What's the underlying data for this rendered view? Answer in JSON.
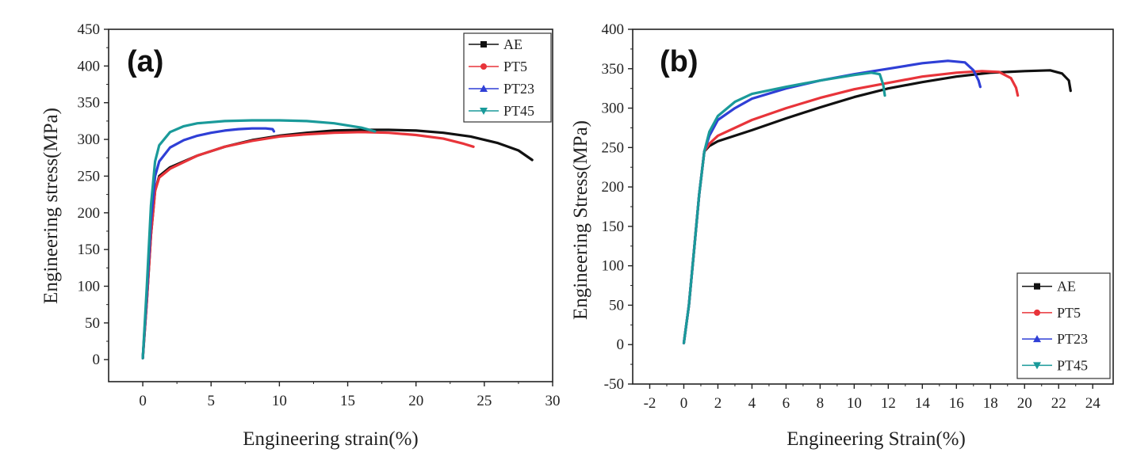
{
  "figure": {
    "description_free": true
  },
  "chart_data": [
    {
      "type": "line",
      "panel_label": "(a)",
      "xlabel": "Engineering strain(%)",
      "ylabel": "Engineering stress(MPa)",
      "xlim": [
        -2.5,
        30
      ],
      "ylim": [
        -30,
        450
      ],
      "xticks": [
        0,
        5,
        10,
        15,
        20,
        25,
        30
      ],
      "yticks": [
        0,
        50,
        100,
        150,
        200,
        250,
        300,
        350,
        400,
        450
      ],
      "legend_position": "top-right",
      "series": [
        {
          "name": "AE",
          "color": "#111111",
          "marker": "square",
          "points": [
            [
              0,
              2
            ],
            [
              0.3,
              80
            ],
            [
              0.6,
              170
            ],
            [
              0.9,
              230
            ],
            [
              1.2,
              250
            ],
            [
              2,
              262
            ],
            [
              4,
              278
            ],
            [
              6,
              290
            ],
            [
              8,
              299
            ],
            [
              10,
              305
            ],
            [
              12,
              309
            ],
            [
              14,
              312
            ],
            [
              16,
              313
            ],
            [
              18,
              313
            ],
            [
              20,
              312
            ],
            [
              22,
              309
            ],
            [
              24,
              304
            ],
            [
              26,
              295
            ],
            [
              27.5,
              285
            ],
            [
              28.5,
              272
            ]
          ]
        },
        {
          "name": "PT5",
          "color": "#e8343a",
          "marker": "circle",
          "points": [
            [
              0,
              2
            ],
            [
              0.3,
              80
            ],
            [
              0.6,
              170
            ],
            [
              0.9,
              230
            ],
            [
              1.2,
              248
            ],
            [
              2,
              260
            ],
            [
              4,
              278
            ],
            [
              6,
              290
            ],
            [
              8,
              298
            ],
            [
              10,
              304
            ],
            [
              12,
              307
            ],
            [
              14,
              309
            ],
            [
              16,
              310
            ],
            [
              18,
              309
            ],
            [
              20,
              306
            ],
            [
              22,
              301
            ],
            [
              23.5,
              294
            ],
            [
              24.2,
              290
            ]
          ]
        },
        {
          "name": "PT23",
          "color": "#2f3fd6",
          "marker": "triangle-up",
          "points": [
            [
              0,
              2
            ],
            [
              0.3,
              90
            ],
            [
              0.6,
              190
            ],
            [
              0.9,
              250
            ],
            [
              1.2,
              270
            ],
            [
              2,
              289
            ],
            [
              3,
              299
            ],
            [
              4,
              305
            ],
            [
              5,
              309
            ],
            [
              6,
              312
            ],
            [
              7,
              314
            ],
            [
              8,
              315
            ],
            [
              9,
              315
            ],
            [
              9.5,
              314
            ],
            [
              9.6,
              311
            ]
          ]
        },
        {
          "name": "PT45",
          "color": "#1a9a9a",
          "marker": "triangle-down",
          "points": [
            [
              0,
              2
            ],
            [
              0.3,
              100
            ],
            [
              0.6,
              210
            ],
            [
              0.9,
              270
            ],
            [
              1.2,
              292
            ],
            [
              2,
              310
            ],
            [
              3,
              318
            ],
            [
              4,
              322
            ],
            [
              6,
              325
            ],
            [
              8,
              326
            ],
            [
              10,
              326
            ],
            [
              12,
              325
            ],
            [
              14,
              322
            ],
            [
              16,
              316
            ],
            [
              17,
              311
            ]
          ]
        }
      ]
    },
    {
      "type": "line",
      "panel_label": "(b)",
      "xlabel": "Engineering Strain(%)",
      "ylabel": "Engineering Stress(MPa)",
      "xlim": [
        -3,
        25.2
      ],
      "ylim": [
        -50,
        400
      ],
      "xticks": [
        -2,
        0,
        2,
        4,
        6,
        8,
        10,
        12,
        14,
        16,
        18,
        20,
        22,
        24
      ],
      "yticks": [
        -50,
        0,
        50,
        100,
        150,
        200,
        250,
        300,
        350,
        400
      ],
      "legend_position": "bottom-right",
      "series": [
        {
          "name": "AE",
          "color": "#111111",
          "marker": "square",
          "points": [
            [
              0,
              2
            ],
            [
              0.3,
              50
            ],
            [
              0.6,
              120
            ],
            [
              0.9,
              190
            ],
            [
              1.2,
              245
            ],
            [
              1.5,
              252
            ],
            [
              2,
              258
            ],
            [
              4,
              272
            ],
            [
              6,
              287
            ],
            [
              8,
              301
            ],
            [
              10,
              314
            ],
            [
              12,
              325
            ],
            [
              14,
              333
            ],
            [
              16,
              340
            ],
            [
              18,
              345
            ],
            [
              20,
              347
            ],
            [
              21.5,
              348
            ],
            [
              22.2,
              344
            ],
            [
              22.6,
              335
            ],
            [
              22.7,
              322
            ]
          ]
        },
        {
          "name": "PT5",
          "color": "#e8343a",
          "marker": "circle",
          "points": [
            [
              0,
              2
            ],
            [
              0.3,
              50
            ],
            [
              0.6,
              120
            ],
            [
              0.9,
              190
            ],
            [
              1.2,
              245
            ],
            [
              1.5,
              255
            ],
            [
              2,
              265
            ],
            [
              4,
              285
            ],
            [
              6,
              300
            ],
            [
              8,
              313
            ],
            [
              10,
              324
            ],
            [
              12,
              332
            ],
            [
              14,
              340
            ],
            [
              16,
              345
            ],
            [
              17.5,
              347
            ],
            [
              18.5,
              346
            ],
            [
              19.2,
              338
            ],
            [
              19.5,
              326
            ],
            [
              19.6,
              316
            ]
          ]
        },
        {
          "name": "PT23",
          "color": "#2f3fd6",
          "marker": "triangle-up",
          "points": [
            [
              0,
              2
            ],
            [
              0.3,
              50
            ],
            [
              0.6,
              120
            ],
            [
              0.9,
              190
            ],
            [
              1.2,
              245
            ],
            [
              1.5,
              265
            ],
            [
              2,
              285
            ],
            [
              3,
              300
            ],
            [
              4,
              312
            ],
            [
              6,
              325
            ],
            [
              8,
              335
            ],
            [
              10,
              343
            ],
            [
              12,
              350
            ],
            [
              14,
              357
            ],
            [
              15.5,
              360
            ],
            [
              16.5,
              358
            ],
            [
              17,
              348
            ],
            [
              17.3,
              335
            ],
            [
              17.4,
              327
            ]
          ]
        },
        {
          "name": "PT45",
          "color": "#1a9a9a",
          "marker": "triangle-down",
          "points": [
            [
              0,
              2
            ],
            [
              0.3,
              50
            ],
            [
              0.6,
              120
            ],
            [
              0.9,
              190
            ],
            [
              1.2,
              245
            ],
            [
              1.5,
              270
            ],
            [
              2,
              290
            ],
            [
              3,
              308
            ],
            [
              4,
              318
            ],
            [
              6,
              327
            ],
            [
              8,
              335
            ],
            [
              10,
              342
            ],
            [
              11,
              345
            ],
            [
              11.5,
              343
            ],
            [
              11.7,
              330
            ],
            [
              11.8,
              316
            ]
          ]
        }
      ]
    }
  ]
}
